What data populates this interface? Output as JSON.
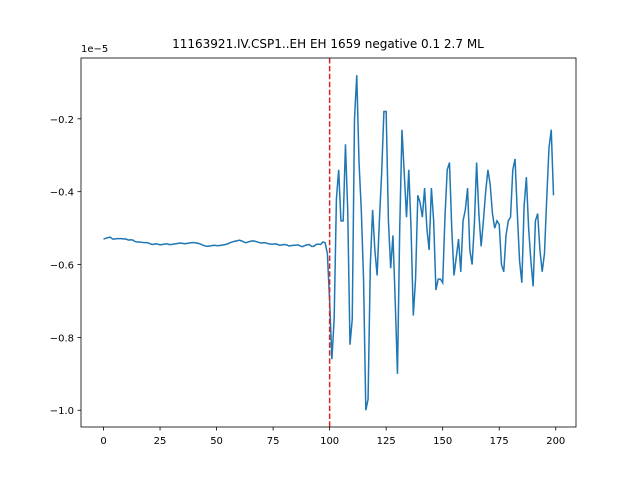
{
  "chart_data": {
    "type": "line",
    "title": "11163921.IV.CSP1..EH EH 1659 negative 0.1 2.7 ML",
    "y_offset_label": "1e−5",
    "x": [
      0,
      1,
      2,
      3,
      4,
      5,
      6,
      7,
      8,
      9,
      10,
      11,
      12,
      13,
      14,
      15,
      16,
      17,
      18,
      19,
      20,
      21,
      22,
      23,
      24,
      25,
      26,
      27,
      28,
      29,
      30,
      31,
      32,
      33,
      34,
      35,
      36,
      37,
      38,
      39,
      40,
      41,
      42,
      43,
      44,
      45,
      46,
      47,
      48,
      49,
      50,
      51,
      52,
      53,
      54,
      55,
      56,
      57,
      58,
      59,
      60,
      61,
      62,
      63,
      64,
      65,
      66,
      67,
      68,
      69,
      70,
      71,
      72,
      73,
      74,
      75,
      76,
      77,
      78,
      79,
      80,
      81,
      82,
      83,
      84,
      85,
      86,
      87,
      88,
      89,
      90,
      91,
      92,
      93,
      94,
      95,
      96,
      97,
      98,
      99,
      100,
      101,
      102,
      103,
      104,
      105,
      106,
      107,
      108,
      109,
      110,
      111,
      112,
      113,
      114,
      115,
      116,
      117,
      118,
      119,
      120,
      121,
      122,
      123,
      124,
      125,
      126,
      127,
      128,
      129,
      130,
      131,
      132,
      133,
      134,
      135,
      136,
      137,
      138,
      139,
      140,
      141,
      142,
      143,
      144,
      145,
      146,
      147,
      148,
      149,
      150,
      151,
      152,
      153,
      154,
      155,
      156,
      157,
      158,
      159,
      160,
      161,
      162,
      163,
      164,
      165,
      166,
      167,
      168,
      169,
      170,
      171,
      172,
      173,
      174,
      175,
      176,
      177,
      178,
      179,
      180,
      181,
      182,
      183,
      184,
      185,
      186,
      187,
      188,
      189,
      190,
      191,
      192,
      193,
      194,
      195,
      196,
      197,
      198,
      199
    ],
    "series": [
      {
        "color": "#1f77b4",
        "values": [
          -0.53,
          -0.528,
          -0.526,
          -0.525,
          -0.53,
          -0.53,
          -0.529,
          -0.529,
          -0.529,
          -0.53,
          -0.53,
          -0.533,
          -0.532,
          -0.533,
          -0.537,
          -0.538,
          -0.538,
          -0.539,
          -0.54,
          -0.54,
          -0.541,
          -0.544,
          -0.545,
          -0.543,
          -0.544,
          -0.546,
          -0.545,
          -0.544,
          -0.543,
          -0.545,
          -0.545,
          -0.544,
          -0.543,
          -0.542,
          -0.541,
          -0.542,
          -0.543,
          -0.542,
          -0.541,
          -0.54,
          -0.54,
          -0.541,
          -0.542,
          -0.544,
          -0.547,
          -0.549,
          -0.55,
          -0.549,
          -0.548,
          -0.547,
          -0.548,
          -0.548,
          -0.547,
          -0.546,
          -0.545,
          -0.543,
          -0.54,
          -0.538,
          -0.536,
          -0.535,
          -0.533,
          -0.535,
          -0.538,
          -0.54,
          -0.538,
          -0.536,
          -0.535,
          -0.536,
          -0.538,
          -0.54,
          -0.541,
          -0.54,
          -0.541,
          -0.543,
          -0.544,
          -0.544,
          -0.543,
          -0.545,
          -0.547,
          -0.546,
          -0.545,
          -0.546,
          -0.549,
          -0.548,
          -0.547,
          -0.547,
          -0.546,
          -0.549,
          -0.551,
          -0.548,
          -0.546,
          -0.545,
          -0.55,
          -0.55,
          -0.545,
          -0.544,
          -0.545,
          -0.538,
          -0.54,
          -0.57,
          -0.7,
          -0.86,
          -0.75,
          -0.42,
          -0.34,
          -0.48,
          -0.48,
          -0.27,
          -0.45,
          -0.82,
          -0.75,
          -0.2,
          -0.08,
          -0.32,
          -0.45,
          -0.64,
          -1.0,
          -0.97,
          -0.6,
          -0.45,
          -0.56,
          -0.63,
          -0.48,
          -0.35,
          -0.18,
          -0.18,
          -0.48,
          -0.61,
          -0.52,
          -0.7,
          -0.9,
          -0.5,
          -0.23,
          -0.35,
          -0.47,
          -0.34,
          -0.5,
          -0.74,
          -0.64,
          -0.41,
          -0.43,
          -0.47,
          -0.39,
          -0.5,
          -0.56,
          -0.39,
          -0.48,
          -0.67,
          -0.64,
          -0.64,
          -0.65,
          -0.47,
          -0.34,
          -0.32,
          -0.5,
          -0.63,
          -0.58,
          -0.53,
          -0.62,
          -0.48,
          -0.45,
          -0.39,
          -0.56,
          -0.6,
          -0.49,
          -0.32,
          -0.46,
          -0.55,
          -0.48,
          -0.4,
          -0.34,
          -0.38,
          -0.46,
          -0.5,
          -0.48,
          -0.49,
          -0.6,
          -0.62,
          -0.52,
          -0.48,
          -0.47,
          -0.34,
          -0.31,
          -0.46,
          -0.59,
          -0.65,
          -0.44,
          -0.36,
          -0.5,
          -0.59,
          -0.66,
          -0.48,
          -0.46,
          -0.56,
          -0.62,
          -0.57,
          -0.42,
          -0.28,
          -0.23,
          -0.41
        ]
      }
    ],
    "vline": {
      "x": 100,
      "color": "#d62728"
    },
    "xlim": [
      -9.95,
      208.95
    ],
    "xticks": [
      0,
      25,
      50,
      75,
      100,
      125,
      150,
      175,
      200
    ],
    "ylim": [
      -1.046,
      -0.033
    ],
    "yticks": [
      {
        "value": -1.0,
        "label": "−1.0"
      },
      {
        "value": -0.8,
        "label": "−0.8"
      },
      {
        "value": -0.6,
        "label": "−0.6"
      },
      {
        "value": -0.4,
        "label": "−0.4"
      },
      {
        "value": -0.2,
        "label": "−0.2"
      }
    ]
  }
}
